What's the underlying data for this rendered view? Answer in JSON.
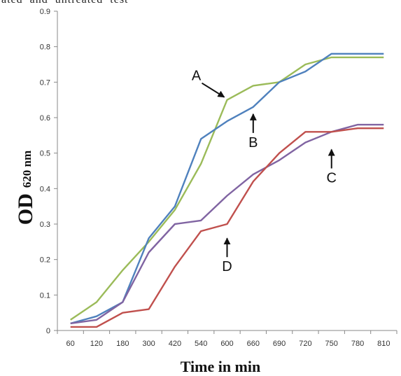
{
  "header": {
    "cropped_caption": "ated  and  untreated  test"
  },
  "chart_data": {
    "type": "line",
    "title": "",
    "xlabel": "Time in min",
    "ylabel": {
      "main": "OD",
      "sub": "620 nm"
    },
    "categories": [
      "60",
      "120",
      "180",
      "300",
      "420",
      "540",
      "600",
      "660",
      "690",
      "720",
      "750",
      "780",
      "810"
    ],
    "ylim": [
      0,
      0.9
    ],
    "yticks": [
      0,
      0.1,
      0.2,
      0.3,
      0.4,
      0.5,
      0.6,
      0.7,
      0.8,
      0.9
    ],
    "ytick_labels": [
      "0",
      "0.1",
      "0.2",
      "0.3",
      "0.4",
      "0.5",
      "0.6",
      "0.7",
      "0.8",
      "0.9"
    ],
    "grid": false,
    "legend": "none",
    "series": [
      {
        "id": "green",
        "color": "#9bbb59",
        "values": [
          0.03,
          0.08,
          0.17,
          0.25,
          0.34,
          0.47,
          0.65,
          0.69,
          0.7,
          0.75,
          0.77,
          0.77,
          0.77
        ]
      },
      {
        "id": "blue",
        "color": "#4f81bd",
        "values": [
          0.02,
          0.04,
          0.08,
          0.26,
          0.35,
          0.54,
          0.59,
          0.63,
          0.7,
          0.73,
          0.78,
          0.78,
          0.78
        ]
      },
      {
        "id": "purple",
        "color": "#8064a2",
        "values": [
          0.02,
          0.03,
          0.08,
          0.22,
          0.3,
          0.31,
          0.38,
          0.44,
          0.48,
          0.53,
          0.56,
          0.58,
          0.58
        ]
      },
      {
        "id": "red",
        "color": "#c0504d",
        "values": [
          0.01,
          0.01,
          0.05,
          0.06,
          0.18,
          0.28,
          0.3,
          0.42,
          0.5,
          0.56,
          0.56,
          0.57,
          0.57
        ]
      }
    ],
    "annotations": [
      {
        "label": "A",
        "category": "600",
        "value": 0.65
      },
      {
        "label": "B",
        "category": "660",
        "value": 0.62
      },
      {
        "label": "C",
        "category": "750",
        "value": 0.52
      },
      {
        "label": "D",
        "category": "600",
        "value": 0.27
      }
    ]
  }
}
